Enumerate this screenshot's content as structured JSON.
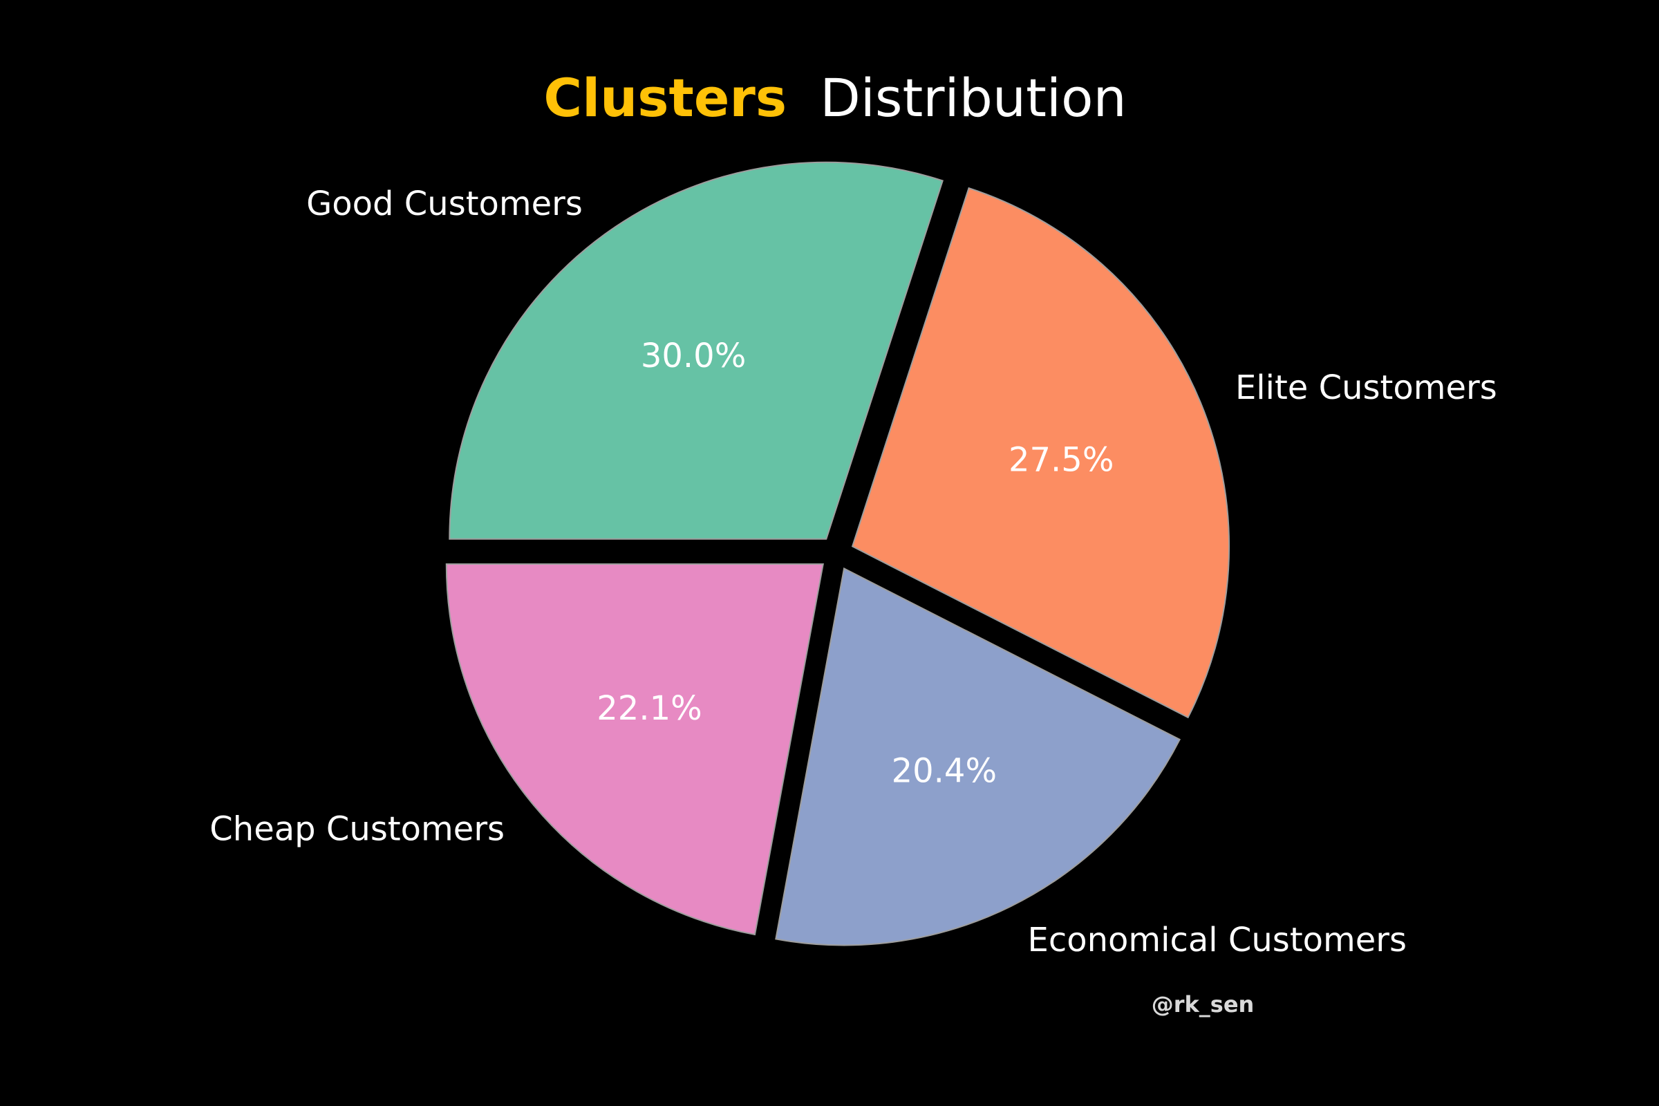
{
  "title": {
    "accent": "Clusters",
    "rest": "Distribution",
    "accent_color": "#FFC107",
    "rest_color": "#FFFFFF"
  },
  "watermark": "@rk_sen",
  "chart_data": {
    "type": "pie",
    "title": "Clusters Distribution",
    "labels": [
      "Good Customers",
      "Elite Customers",
      "Economical Customers",
      "Cheap Customers"
    ],
    "values": [
      30.0,
      27.5,
      20.4,
      22.1
    ],
    "value_labels": [
      "30.0%",
      "27.5%",
      "20.4%",
      "22.1%"
    ],
    "colors": [
      "#66C2A5",
      "#FC8D62",
      "#8DA0CB",
      "#E78AC3"
    ],
    "edge_color": "#9E9E9E",
    "background": "#000000",
    "start_angle_deg": 180,
    "direction": "clockwise",
    "exploded": true
  }
}
